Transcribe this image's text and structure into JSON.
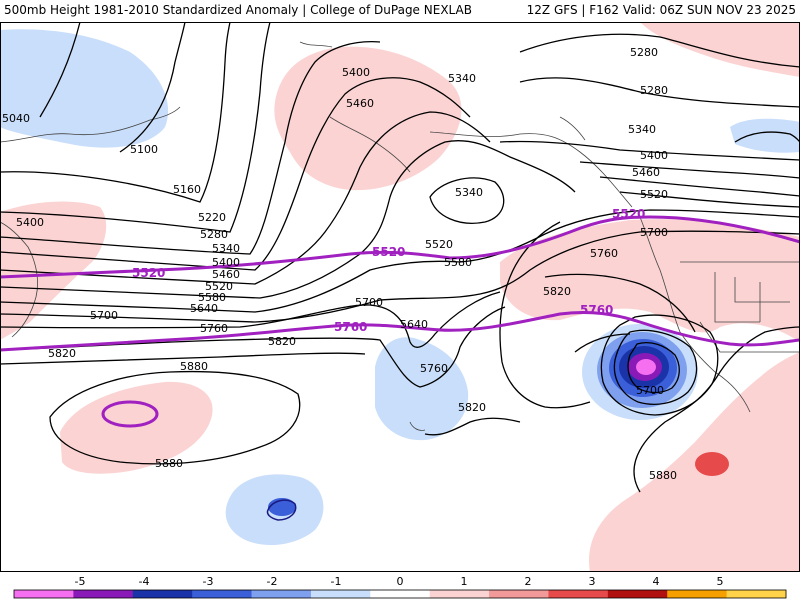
{
  "title": {
    "left": "500mb Height 1981-2010 Standardized Anomaly | College of DuPage NEXLAB",
    "right": "12Z GFS | F162 Valid: 06Z SUN NOV 23 2025"
  },
  "chart_data": {
    "type": "map",
    "field": "500mb geopotential height (dam x10, m)",
    "shading": "Standardized anomaly (sigma)",
    "contour_labels": [
      "5040",
      "5100",
      "5160",
      "5220",
      "5280",
      "5340",
      "5400",
      "5460",
      "5520",
      "5580",
      "5640",
      "5700",
      "5760",
      "5820",
      "5880"
    ],
    "highlighted_contours": [
      "5520",
      "5760"
    ],
    "anomaly_features": [
      {
        "name": "ne-pacific-ridge",
        "sign": "positive",
        "max_sigma": 1.5
      },
      {
        "name": "alaska-low-area",
        "sign": "negative",
        "max_sigma": -1.0
      },
      {
        "name": "central-pacific-trough",
        "sign": "negative",
        "max_sigma": -1.5
      },
      {
        "name": "california-cutoff-low",
        "sign": "negative",
        "max_sigma": -5.0
      },
      {
        "name": "subtropical-low",
        "sign": "negative",
        "max_sigma": -3.0
      },
      {
        "name": "mexico-ridge",
        "sign": "positive",
        "max_sigma": 2.5
      }
    ]
  },
  "legend": {
    "ticks": [
      "-5",
      "-4",
      "-3",
      "-2",
      "-1",
      "0",
      "1",
      "2",
      "3",
      "4",
      "5"
    ],
    "colors": [
      "#f66ff0",
      "#8a1ab8",
      "#1a33a8",
      "#3a5fd8",
      "#7fa0ee",
      "#c9defa",
      "#ffffff",
      "#fbd3d3",
      "#f29a9a",
      "#e64a4a",
      "#b01010",
      "#f5a000",
      "#ffd24a"
    ]
  },
  "map_labels": {
    "l5040": "5040",
    "l5100": "5100",
    "l5160": "5160",
    "l5220": "5220",
    "l5280a": "5280",
    "l5340a": "5340",
    "l5400a": "5400",
    "l5460a": "5460",
    "l5520a": "5520",
    "l5580a": "5580",
    "l5640a": "5640",
    "l5700a": "5700",
    "l5760a": "5760",
    "l5820a": "5820",
    "l5400b": "5400",
    "l5460b": "5460",
    "l5340b": "5340",
    "l5340c": "5340",
    "l5520b": "5520",
    "l5580b": "5580",
    "l5700b": "5700",
    "l5640b": "5640",
    "l5760b": "5760",
    "l5820b": "5820",
    "l5880a": "5880",
    "l5880b": "5880",
    "l5280r1": "5280",
    "l5280r2": "5280",
    "l5340r": "5340",
    "l5400r": "5400",
    "l5460r": "5460",
    "l5520r": "5520",
    "l5700r": "5700",
    "l5760r": "5760",
    "l5820r": "5820",
    "l5700low": "5700",
    "l5880r": "5880",
    "l5400w": "5400",
    "p5520a": "5520",
    "p5520b": "5520",
    "p5520c": "5520",
    "p5760a": "5760",
    "p5760b": "5760"
  }
}
